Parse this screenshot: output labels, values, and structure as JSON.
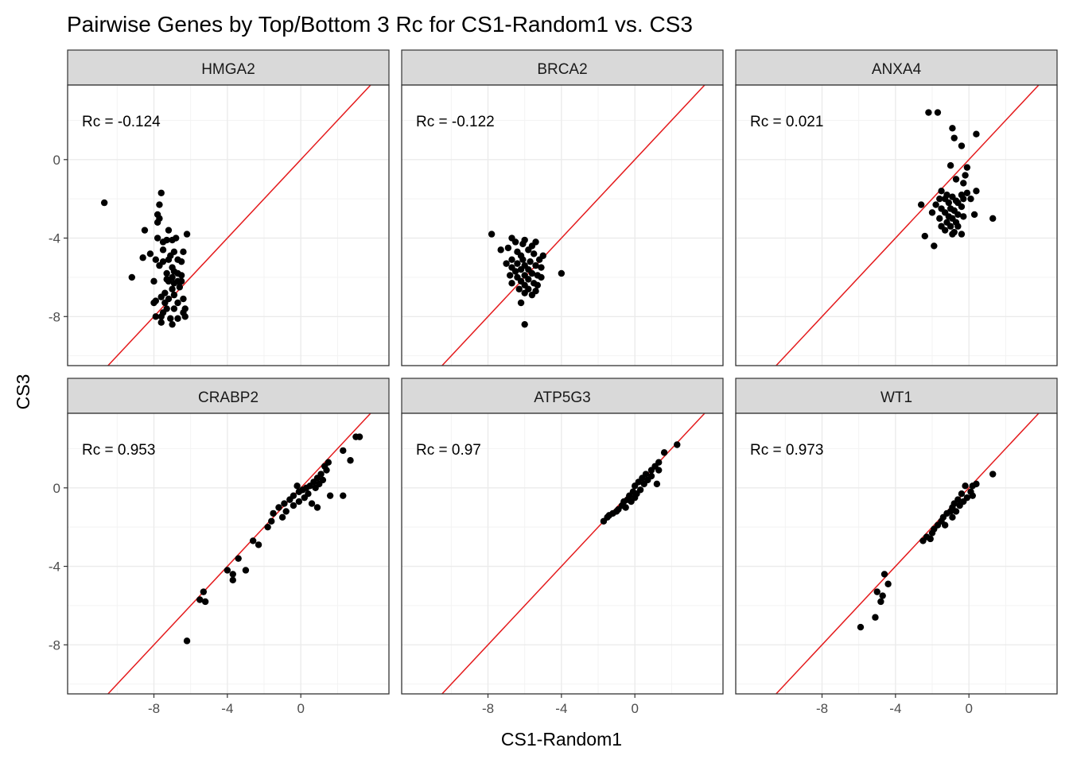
{
  "chart_data": {
    "type": "scatter",
    "title": "Pairwise Genes by Top/Bottom 3 Rc for CS1-Random1 vs. CS3",
    "xlabel": "CS1-Random1",
    "ylabel": "CS3",
    "xlim": [
      -12.7,
      4.8
    ],
    "ylim": [
      -10.5,
      3.8
    ],
    "xticks": [
      -8,
      -4,
      0
    ],
    "yticks": [
      0,
      -4,
      -8
    ],
    "grid": true,
    "reference_line": "y = x",
    "colors": {
      "points": "#000000",
      "reference_line": "#e41a1c",
      "strip_bg": "#d9d9d9",
      "grid": "#ebebeb",
      "panel_border": "#333333"
    },
    "panels": [
      {
        "gene": "HMGA2",
        "rc_label": "Rc = -0.124",
        "points": [
          [
            -10.7,
            -2.2
          ],
          [
            -7.6,
            -1.7
          ],
          [
            -7.7,
            -2.3
          ],
          [
            -7.8,
            -2.8
          ],
          [
            -7.7,
            -3.0
          ],
          [
            -7.8,
            -3.2
          ],
          [
            -8.5,
            -3.6
          ],
          [
            -7.2,
            -3.6
          ],
          [
            -6.2,
            -3.8
          ],
          [
            -7.8,
            -4.0
          ],
          [
            -7.3,
            -4.1
          ],
          [
            -7.0,
            -4.1
          ],
          [
            -7.5,
            -4.2
          ],
          [
            -6.8,
            -4.0
          ],
          [
            -7.5,
            -4.6
          ],
          [
            -6.9,
            -4.7
          ],
          [
            -6.4,
            -4.7
          ],
          [
            -8.2,
            -4.8
          ],
          [
            -7.1,
            -4.9
          ],
          [
            -8.6,
            -5.0
          ],
          [
            -6.7,
            -5.1
          ],
          [
            -7.2,
            -5.1
          ],
          [
            -7.9,
            -5.1
          ],
          [
            -6.5,
            -5.2
          ],
          [
            -7.5,
            -5.2
          ],
          [
            -7.7,
            -5.4
          ],
          [
            -7.0,
            -5.5
          ],
          [
            -6.9,
            -5.7
          ],
          [
            -6.7,
            -5.8
          ],
          [
            -7.3,
            -5.8
          ],
          [
            -6.5,
            -5.9
          ],
          [
            -7.0,
            -6.0
          ],
          [
            -7.3,
            -6.1
          ],
          [
            -9.2,
            -6.0
          ],
          [
            -8.0,
            -6.2
          ],
          [
            -6.7,
            -6.2
          ],
          [
            -6.9,
            -6.3
          ],
          [
            -7.2,
            -6.2
          ],
          [
            -6.5,
            -6.2
          ],
          [
            -6.6,
            -6.5
          ],
          [
            -7.0,
            -6.6
          ],
          [
            -7.4,
            -6.8
          ],
          [
            -6.9,
            -6.9
          ],
          [
            -7.6,
            -7.0
          ],
          [
            -7.2,
            -7.1
          ],
          [
            -7.9,
            -7.2
          ],
          [
            -7.4,
            -7.3
          ],
          [
            -6.4,
            -7.1
          ],
          [
            -6.7,
            -7.3
          ],
          [
            -8.0,
            -7.3
          ],
          [
            -7.3,
            -7.6
          ],
          [
            -6.9,
            -7.6
          ],
          [
            -6.3,
            -7.6
          ],
          [
            -7.5,
            -7.8
          ],
          [
            -6.4,
            -7.8
          ],
          [
            -7.6,
            -8.0
          ],
          [
            -7.9,
            -8.0
          ],
          [
            -6.7,
            -8.1
          ],
          [
            -7.1,
            -8.1
          ],
          [
            -6.3,
            -8.0
          ],
          [
            -7.6,
            -8.3
          ],
          [
            -7.0,
            -8.4
          ]
        ]
      },
      {
        "gene": "BRCA2",
        "rc_label": "Rc = -0.122",
        "points": [
          [
            -7.8,
            -3.8
          ],
          [
            -6.7,
            -4.0
          ],
          [
            -6.0,
            -4.1
          ],
          [
            -6.5,
            -4.2
          ],
          [
            -6.1,
            -4.3
          ],
          [
            -5.4,
            -4.2
          ],
          [
            -5.6,
            -4.4
          ],
          [
            -6.9,
            -4.5
          ],
          [
            -6.4,
            -4.7
          ],
          [
            -5.8,
            -4.6
          ],
          [
            -7.3,
            -4.6
          ],
          [
            -6.2,
            -4.9
          ],
          [
            -5.5,
            -4.8
          ],
          [
            -5.0,
            -4.9
          ],
          [
            -6.7,
            -5.1
          ],
          [
            -6.1,
            -5.1
          ],
          [
            -5.7,
            -5.2
          ],
          [
            -5.2,
            -5.1
          ],
          [
            -7.0,
            -5.3
          ],
          [
            -6.4,
            -5.3
          ],
          [
            -6.0,
            -5.4
          ],
          [
            -5.4,
            -5.4
          ],
          [
            -6.7,
            -5.5
          ],
          [
            -5.8,
            -5.6
          ],
          [
            -6.2,
            -5.6
          ],
          [
            -5.1,
            -5.5
          ],
          [
            -6.5,
            -5.7
          ],
          [
            -5.6,
            -5.8
          ],
          [
            -6.0,
            -5.9
          ],
          [
            -5.3,
            -5.9
          ],
          [
            -6.8,
            -5.9
          ],
          [
            -6.4,
            -6.0
          ],
          [
            -5.8,
            -6.1
          ],
          [
            -5.1,
            -6.0
          ],
          [
            -6.2,
            -6.2
          ],
          [
            -5.5,
            -6.3
          ],
          [
            -6.7,
            -6.3
          ],
          [
            -6.0,
            -6.4
          ],
          [
            -5.3,
            -6.4
          ],
          [
            -5.8,
            -6.6
          ],
          [
            -6.3,
            -6.6
          ],
          [
            -5.4,
            -6.7
          ],
          [
            -6.0,
            -6.8
          ],
          [
            -5.6,
            -6.9
          ],
          [
            -6.2,
            -7.3
          ],
          [
            -4.0,
            -5.8
          ],
          [
            -6.0,
            -8.4
          ]
        ]
      },
      {
        "gene": "ANXA4",
        "rc_label": "Rc = 0.021",
        "points": [
          [
            -2.2,
            2.4
          ],
          [
            -1.7,
            2.4
          ],
          [
            -0.9,
            1.6
          ],
          [
            0.4,
            1.3
          ],
          [
            -0.8,
            1.1
          ],
          [
            -0.4,
            0.7
          ],
          [
            -1.0,
            -0.3
          ],
          [
            -0.1,
            -0.4
          ],
          [
            -0.2,
            -0.8
          ],
          [
            -0.7,
            -1.0
          ],
          [
            -0.3,
            -1.2
          ],
          [
            -1.5,
            -1.6
          ],
          [
            0.4,
            -1.6
          ],
          [
            -0.1,
            -1.7
          ],
          [
            -1.2,
            -1.8
          ],
          [
            -0.4,
            -1.8
          ],
          [
            -0.9,
            -1.9
          ],
          [
            -1.6,
            -2.0
          ],
          [
            -1.3,
            -2.0
          ],
          [
            -0.7,
            -2.1
          ],
          [
            -0.3,
            -2.0
          ],
          [
            0.1,
            -2.0
          ],
          [
            -1.1,
            -2.2
          ],
          [
            -0.6,
            -2.2
          ],
          [
            -2.6,
            -2.3
          ],
          [
            -1.8,
            -2.3
          ],
          [
            -1.5,
            -2.5
          ],
          [
            -1.0,
            -2.5
          ],
          [
            -0.4,
            -2.4
          ],
          [
            -0.8,
            -2.6
          ],
          [
            -1.3,
            -2.7
          ],
          [
            -2.0,
            -2.7
          ],
          [
            -0.6,
            -2.8
          ],
          [
            -1.1,
            -2.9
          ],
          [
            -1.6,
            -3.0
          ],
          [
            -0.9,
            -3.0
          ],
          [
            -0.3,
            -2.9
          ],
          [
            1.3,
            -3.0
          ],
          [
            0.3,
            -2.8
          ],
          [
            -1.2,
            -3.2
          ],
          [
            -0.7,
            -3.2
          ],
          [
            -1.5,
            -3.4
          ],
          [
            -1.0,
            -3.4
          ],
          [
            -0.6,
            -3.4
          ],
          [
            -1.3,
            -3.6
          ],
          [
            -0.8,
            -3.7
          ],
          [
            -0.4,
            -3.8
          ],
          [
            -0.9,
            -3.8
          ],
          [
            -2.4,
            -3.9
          ],
          [
            -1.9,
            -4.4
          ]
        ]
      },
      {
        "gene": "CRABP2",
        "rc_label": "Rc = 0.953",
        "points": [
          [
            3.0,
            2.6
          ],
          [
            3.2,
            2.6
          ],
          [
            2.3,
            1.9
          ],
          [
            2.7,
            1.4
          ],
          [
            1.5,
            1.3
          ],
          [
            1.3,
            1.1
          ],
          [
            1.4,
            0.9
          ],
          [
            1.1,
            0.7
          ],
          [
            0.9,
            0.5
          ],
          [
            1.2,
            0.4
          ],
          [
            0.7,
            0.3
          ],
          [
            1.0,
            0.2
          ],
          [
            0.5,
            0.1
          ],
          [
            -0.2,
            0.1
          ],
          [
            0.3,
            0.0
          ],
          [
            0.8,
            0.0
          ],
          [
            0.1,
            -0.1
          ],
          [
            -0.1,
            -0.2
          ],
          [
            0.4,
            -0.3
          ],
          [
            1.6,
            -0.4
          ],
          [
            2.3,
            -0.4
          ],
          [
            -0.4,
            -0.4
          ],
          [
            0.2,
            -0.5
          ],
          [
            -0.6,
            -0.6
          ],
          [
            -0.1,
            -0.7
          ],
          [
            -0.9,
            -0.8
          ],
          [
            0.6,
            -0.8
          ],
          [
            -0.4,
            -0.9
          ],
          [
            -1.2,
            -1.0
          ],
          [
            0.9,
            -1.0
          ],
          [
            -0.8,
            -1.2
          ],
          [
            -1.5,
            -1.3
          ],
          [
            -1.0,
            -1.5
          ],
          [
            -1.6,
            -1.7
          ],
          [
            -1.8,
            -2.0
          ],
          [
            -2.6,
            -2.7
          ],
          [
            -2.3,
            -2.9
          ],
          [
            -3.4,
            -3.6
          ],
          [
            -4.0,
            -4.2
          ],
          [
            -3.7,
            -4.4
          ],
          [
            -3.0,
            -4.2
          ],
          [
            -3.7,
            -4.7
          ],
          [
            -5.3,
            -5.3
          ],
          [
            -5.5,
            -5.7
          ],
          [
            -5.2,
            -5.8
          ],
          [
            -6.2,
            -7.8
          ]
        ]
      },
      {
        "gene": "ATP5G3",
        "rc_label": "Rc = 0.97",
        "points": [
          [
            2.3,
            2.2
          ],
          [
            1.6,
            1.8
          ],
          [
            1.3,
            1.3
          ],
          [
            1.1,
            1.1
          ],
          [
            1.3,
            0.9
          ],
          [
            0.9,
            0.9
          ],
          [
            0.6,
            0.7
          ],
          [
            0.9,
            0.6
          ],
          [
            0.4,
            0.5
          ],
          [
            0.7,
            0.4
          ],
          [
            0.2,
            0.3
          ],
          [
            0.5,
            0.2
          ],
          [
            0.0,
            0.1
          ],
          [
            1.2,
            0.2
          ],
          [
            0.3,
            -0.1
          ],
          [
            -0.1,
            -0.2
          ],
          [
            0.1,
            -0.3
          ],
          [
            -0.3,
            -0.4
          ],
          [
            0.0,
            -0.5
          ],
          [
            -0.4,
            -0.6
          ],
          [
            -0.6,
            -0.7
          ],
          [
            -0.2,
            -0.7
          ],
          [
            -0.7,
            -0.9
          ],
          [
            -0.5,
            -1.0
          ],
          [
            -0.9,
            -1.1
          ],
          [
            -1.0,
            -1.2
          ],
          [
            -1.2,
            -1.3
          ],
          [
            -1.4,
            -1.4
          ],
          [
            -1.5,
            -1.5
          ],
          [
            -1.7,
            -1.7
          ]
        ]
      },
      {
        "gene": "WT1",
        "rc_label": "Rc = 0.973",
        "points": [
          [
            1.3,
            0.7
          ],
          [
            0.4,
            0.2
          ],
          [
            0.2,
            0.1
          ],
          [
            -0.2,
            0.1
          ],
          [
            0.1,
            -0.2
          ],
          [
            -0.4,
            -0.3
          ],
          [
            0.2,
            -0.4
          ],
          [
            -0.1,
            -0.5
          ],
          [
            -0.6,
            -0.6
          ],
          [
            -0.3,
            -0.7
          ],
          [
            -0.8,
            -0.8
          ],
          [
            -0.5,
            -0.9
          ],
          [
            -0.9,
            -1.0
          ],
          [
            -1.0,
            -1.2
          ],
          [
            -0.7,
            -1.2
          ],
          [
            -1.2,
            -1.3
          ],
          [
            -1.4,
            -1.5
          ],
          [
            -0.9,
            -1.5
          ],
          [
            -1.5,
            -1.7
          ],
          [
            -1.7,
            -1.9
          ],
          [
            -1.3,
            -1.9
          ],
          [
            -1.9,
            -2.1
          ],
          [
            -2.0,
            -2.3
          ],
          [
            -2.3,
            -2.5
          ],
          [
            -2.1,
            -2.6
          ],
          [
            -2.5,
            -2.7
          ],
          [
            -4.6,
            -4.4
          ],
          [
            -4.4,
            -4.9
          ],
          [
            -5.0,
            -5.3
          ],
          [
            -4.7,
            -5.5
          ],
          [
            -4.8,
            -5.8
          ],
          [
            -5.1,
            -6.6
          ],
          [
            -5.9,
            -7.1
          ]
        ]
      }
    ]
  }
}
